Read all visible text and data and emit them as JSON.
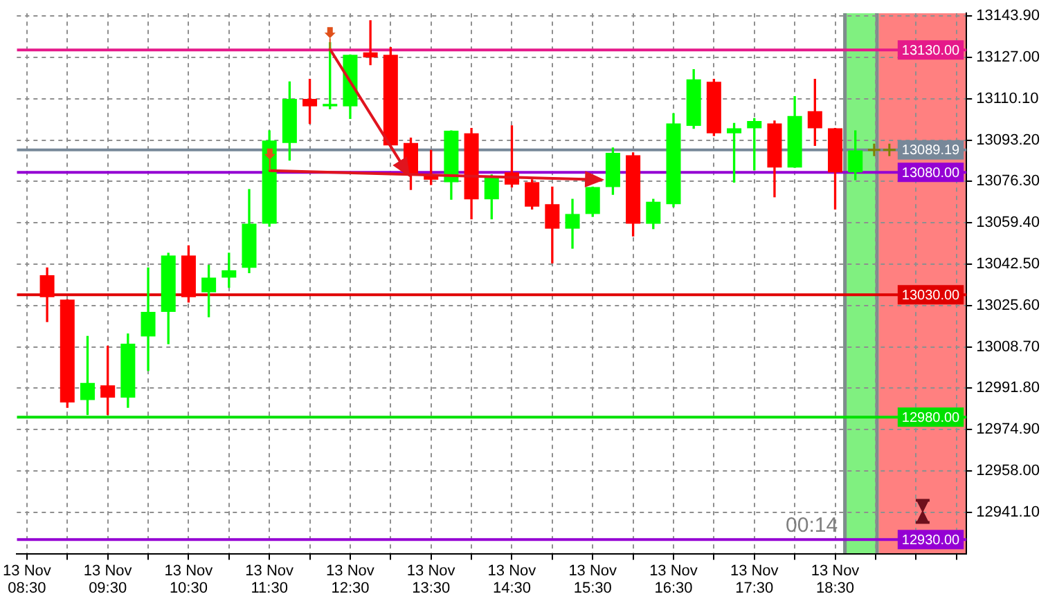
{
  "chart_data": {
    "type": "candlestick",
    "categories": [
      "13 Nov 08:30",
      null,
      null,
      null,
      "13 Nov 09:30",
      null,
      null,
      null,
      "13 Nov 10:30",
      null,
      null,
      null,
      "13 Nov 11:30",
      null,
      null,
      null,
      "13 Nov 12:30",
      null,
      null,
      null,
      "13 Nov 13:30",
      null,
      null,
      null,
      "13 Nov 14:30",
      null,
      null,
      null,
      "13 Nov 15:30",
      null,
      null,
      null,
      "13 Nov 16:30",
      null,
      null,
      null,
      "13 Nov 17:30",
      null,
      null,
      null,
      "13 Nov 18:30",
      null,
      null,
      null,
      null,
      null,
      null
    ],
    "ohlc": [
      null,
      [
        13038,
        13041,
        13019,
        13029
      ],
      [
        13028,
        13028,
        12984,
        12986
      ],
      [
        12987,
        13013,
        12981,
        12994
      ],
      [
        12993,
        13009,
        12981,
        12988
      ],
      [
        12988,
        13014,
        12984,
        13010
      ],
      [
        13013,
        13041,
        12999,
        13023
      ],
      [
        13023,
        13047,
        13010,
        13046
      ],
      [
        13046,
        13050,
        13027,
        13029
      ],
      [
        13031,
        13042,
        13021,
        13037
      ],
      [
        13037,
        13047,
        13033,
        13040
      ],
      [
        13041,
        13073,
        13039,
        13059
      ],
      [
        13059,
        13097,
        13058,
        13093
      ],
      [
        13092,
        13117,
        13085,
        13110
      ],
      [
        13110,
        13118,
        13100,
        13107
      ],
      [
        13107,
        13133,
        13106,
        13108
      ],
      [
        13107,
        13128,
        13102,
        13128
      ],
      [
        13129,
        13142,
        13124,
        13127
      ],
      [
        13128,
        13131,
        13091,
        13091
      ],
      [
        13092,
        13094,
        13073,
        13079
      ],
      [
        13079,
        13089,
        13075,
        13077
      ],
      [
        13076,
        13097,
        13069,
        13097
      ],
      [
        13096,
        13098,
        13061,
        13069
      ],
      [
        13069,
        13079,
        13061,
        13078
      ],
      [
        13080,
        13099,
        13074,
        13075
      ],
      [
        13076,
        13077,
        13065,
        13066
      ],
      [
        13067,
        13074,
        13043,
        13057
      ],
      [
        13057,
        13069,
        13049,
        13063
      ],
      [
        13063,
        13074,
        13062,
        13074
      ],
      [
        13074,
        13090,
        13071,
        13088
      ],
      [
        13087,
        13088,
        13054,
        13059
      ],
      [
        13059,
        13069,
        13057,
        13068
      ],
      [
        13067,
        13104,
        13066,
        13100
      ],
      [
        13099,
        13122,
        13098,
        13118
      ],
      [
        13117,
        13118,
        13095,
        13096
      ],
      [
        13096,
        13100,
        13076,
        13098
      ],
      [
        13098,
        13102,
        13081,
        13101
      ],
      [
        13100,
        13101,
        13070,
        13082
      ],
      [
        13082,
        13111,
        13082,
        13103
      ],
      [
        13105,
        13118,
        13091,
        13098
      ],
      [
        13098,
        13098,
        13065,
        13080
      ],
      [
        13080,
        13097,
        13077,
        13089
      ],
      null,
      null,
      null,
      null,
      null
    ],
    "colors": [
      null,
      "#ff0000",
      "#ff0000",
      "#00ff00",
      "#ff0000",
      "#00ff00",
      "#00ff00",
      "#00ff00",
      "#ff0000",
      "#00ff00",
      "#00ff00",
      "#00ff00",
      "#00ff00",
      "#00ff00",
      "#ff0000",
      "#00ff00",
      "#00ff00",
      "#ff0000",
      "#ff0000",
      "#ff0000",
      "#ff0000",
      "#00ff00",
      "#ff0000",
      "#00ff00",
      "#ff0000",
      "#ff0000",
      "#ff0000",
      "#00ff00",
      "#00ff00",
      "#00ff00",
      "#ff0000",
      "#00ff00",
      "#00ff00",
      "#00ff00",
      "#ff0000",
      "#00ff00",
      "#00ff00",
      "#ff0000",
      "#00ff00",
      "#ff0000",
      "#ff0000",
      "#00ff00",
      null,
      null,
      null,
      null,
      null
    ],
    "ylim": [
      12924,
      13145
    ],
    "yticks": [
      {
        "value": 12941.1,
        "label": "12941.10"
      },
      {
        "value": 12958,
        "label": "12958.00"
      },
      {
        "value": 12974.9,
        "label": "12974.90"
      },
      {
        "value": 12991.8,
        "label": "12991.80"
      },
      {
        "value": 13008.7,
        "label": "13008.70"
      },
      {
        "value": 13025.6,
        "label": "13025.60"
      },
      {
        "value": 13042.5,
        "label": "13042.50"
      },
      {
        "value": 13059.4,
        "label": "13059.40"
      },
      {
        "value": 13076.3,
        "label": "13076.30"
      },
      {
        "value": 13093.2,
        "label": "13093.20"
      },
      {
        "value": 13110.1,
        "label": "13110.10"
      },
      {
        "value": 13127,
        "label": "13127.00"
      },
      {
        "value": 13143.9,
        "label": "13143.90"
      }
    ],
    "grid": true,
    "ref_lines": [
      {
        "axis": "y",
        "value": 13130,
        "label": "13130.00",
        "color": "#e5198a"
      },
      {
        "axis": "y",
        "value": 13089.19,
        "label": "13089.19",
        "color": "#778899"
      },
      {
        "axis": "y",
        "value": 13080,
        "label": "13080.00",
        "color": "#9400d3"
      },
      {
        "axis": "y",
        "value": 13030,
        "label": "13030.00",
        "color": "#e00000"
      },
      {
        "axis": "y",
        "value": 12980,
        "label": "12980.00",
        "color": "#00e000"
      },
      {
        "axis": "y",
        "value": 12930,
        "label": "12930.00",
        "color": "#9400d3"
      }
    ],
    "annotations": [
      "00:14"
    ]
  }
}
